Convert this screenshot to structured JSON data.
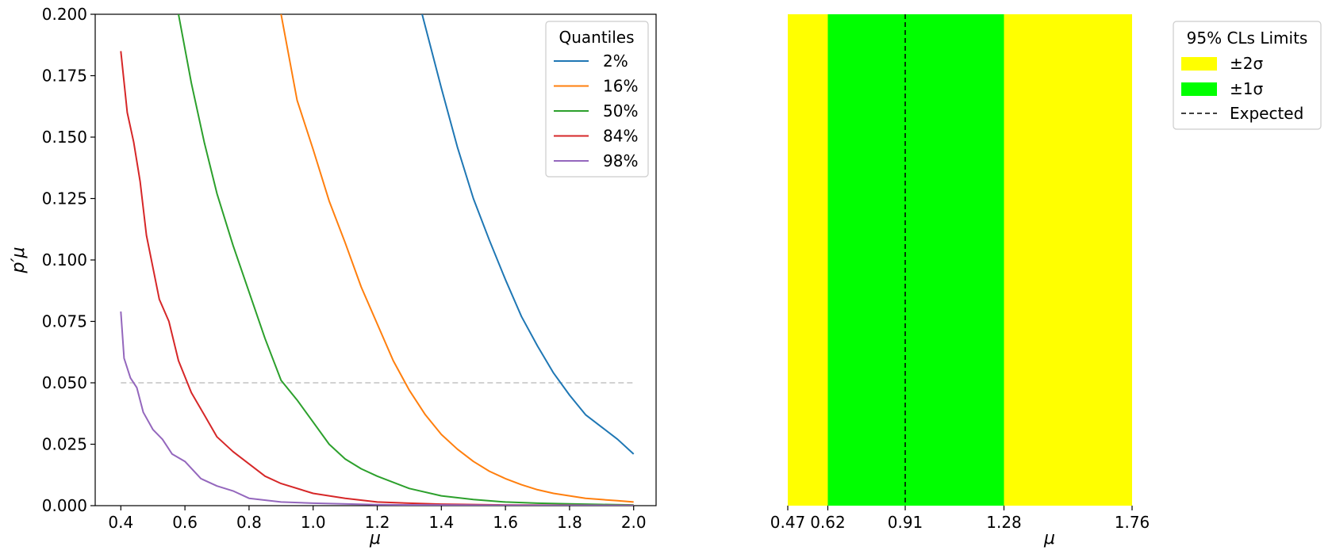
{
  "chart_data": [
    {
      "type": "line",
      "ylabel": "p′μ",
      "xlabel": "μ",
      "xlim": [
        0.32,
        2.07
      ],
      "ylim": [
        0,
        0.2
      ],
      "xticks": [
        "0.4",
        "0.6",
        "0.8",
        "1.0",
        "1.2",
        "1.4",
        "1.6",
        "1.8",
        "2.0"
      ],
      "yticks": [
        "0.000",
        "0.025",
        "0.050",
        "0.075",
        "0.100",
        "0.125",
        "0.150",
        "0.175",
        "0.200"
      ],
      "grid": false,
      "legend": {
        "title": "Quantiles",
        "placement": "top-right"
      },
      "reference_line": {
        "y": 0.05,
        "x_from": 0.4,
        "x_to": 2.0,
        "color": "#cccccc",
        "style": "dashed"
      },
      "series": [
        {
          "name": "2%",
          "color": "#1f77b4",
          "x": [
            1.34,
            1.4,
            1.45,
            1.5,
            1.55,
            1.6,
            1.65,
            1.7,
            1.75,
            1.8,
            1.85,
            1.9,
            1.95,
            2.0
          ],
          "y": [
            0.2,
            0.17,
            0.146,
            0.125,
            0.108,
            0.092,
            0.077,
            0.065,
            0.054,
            0.045,
            0.037,
            0.032,
            0.027,
            0.021
          ]
        },
        {
          "name": "16%",
          "color": "#ff7f0e",
          "x": [
            0.9,
            0.95,
            1.0,
            1.05,
            1.1,
            1.15,
            1.2,
            1.25,
            1.3,
            1.35,
            1.4,
            1.45,
            1.5,
            1.55,
            1.6,
            1.65,
            1.7,
            1.75,
            1.8,
            1.85,
            1.9,
            1.95,
            2.0
          ],
          "y": [
            0.2,
            0.165,
            0.145,
            0.124,
            0.107,
            0.089,
            0.074,
            0.059,
            0.047,
            0.037,
            0.029,
            0.023,
            0.018,
            0.014,
            0.011,
            0.0085,
            0.0065,
            0.005,
            0.004,
            0.003,
            0.0025,
            0.002,
            0.0015
          ]
        },
        {
          "name": "50%",
          "color": "#2ca02c",
          "x": [
            0.58,
            0.62,
            0.66,
            0.7,
            0.75,
            0.8,
            0.85,
            0.9,
            0.95,
            1.0,
            1.05,
            1.1,
            1.15,
            1.2,
            1.3,
            1.4,
            1.5,
            1.6,
            1.7,
            1.8,
            1.9,
            2.0
          ],
          "y": [
            0.2,
            0.172,
            0.148,
            0.127,
            0.106,
            0.087,
            0.068,
            0.051,
            0.043,
            0.034,
            0.025,
            0.019,
            0.015,
            0.012,
            0.007,
            0.004,
            0.0025,
            0.0015,
            0.001,
            0.0007,
            0.0005,
            0.0003
          ]
        },
        {
          "name": "84%",
          "color": "#d62728",
          "x": [
            0.4,
            0.42,
            0.44,
            0.46,
            0.48,
            0.5,
            0.52,
            0.55,
            0.58,
            0.62,
            0.66,
            0.7,
            0.75,
            0.8,
            0.85,
            0.9,
            1.0,
            1.1,
            1.2,
            1.3,
            1.4,
            1.6,
            1.8,
            2.0
          ],
          "y": [
            0.185,
            0.16,
            0.148,
            0.132,
            0.11,
            0.097,
            0.084,
            0.075,
            0.059,
            0.046,
            0.037,
            0.028,
            0.022,
            0.017,
            0.012,
            0.009,
            0.005,
            0.003,
            0.0015,
            0.001,
            0.0006,
            0.0003,
            0.0002,
            0.0001
          ]
        },
        {
          "name": "98%",
          "color": "#9467bd",
          "x": [
            0.4,
            0.41,
            0.43,
            0.45,
            0.47,
            0.5,
            0.53,
            0.56,
            0.6,
            0.65,
            0.7,
            0.75,
            0.8,
            0.9,
            1.0,
            1.2,
            1.5,
            2.0
          ],
          "y": [
            0.079,
            0.06,
            0.052,
            0.048,
            0.038,
            0.031,
            0.027,
            0.021,
            0.018,
            0.011,
            0.008,
            0.006,
            0.003,
            0.0015,
            0.001,
            0.0004,
            0.0002,
            0.0001
          ]
        }
      ]
    },
    {
      "type": "bar",
      "xlabel": "μ",
      "xlim": [
        0.47,
        1.76
      ],
      "xticks": [
        "0.47",
        "0.62",
        "0.91",
        "1.28",
        "1.76"
      ],
      "legend": {
        "title": "95% CLs Limits",
        "placement": "outside-right"
      },
      "bands": [
        {
          "name": "±2σ",
          "from": 0.47,
          "to": 1.76,
          "color": "#ffff00"
        },
        {
          "name": "±1σ",
          "from": 0.62,
          "to": 1.28,
          "color": "#00ff00"
        }
      ],
      "expected": {
        "name": "Expected",
        "value": 0.91,
        "color": "#000000",
        "style": "dashed"
      }
    }
  ]
}
